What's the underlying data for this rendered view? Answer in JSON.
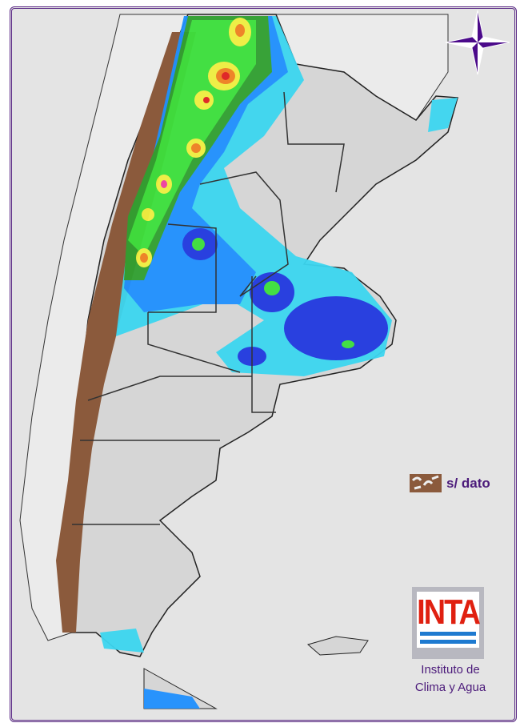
{
  "legend": {
    "no_data_label": "s/ dato",
    "no_data_color": "#8b5a3c"
  },
  "logo": {
    "text": "INTA",
    "text_color": "#e02010",
    "bar_color": "#1e7ad0"
  },
  "institute": {
    "line1": "Instituto de",
    "line2": "Clima y Agua"
  },
  "compass": {
    "icon": "compass-rose-icon",
    "color": "#4b0a8a"
  },
  "precip_colors": [
    "#3cd6f0",
    "#1f90ff",
    "#2038e0",
    "#30a030",
    "#3ce03c",
    "#f0f040",
    "#f08020",
    "#e02020",
    "#f040a0"
  ]
}
